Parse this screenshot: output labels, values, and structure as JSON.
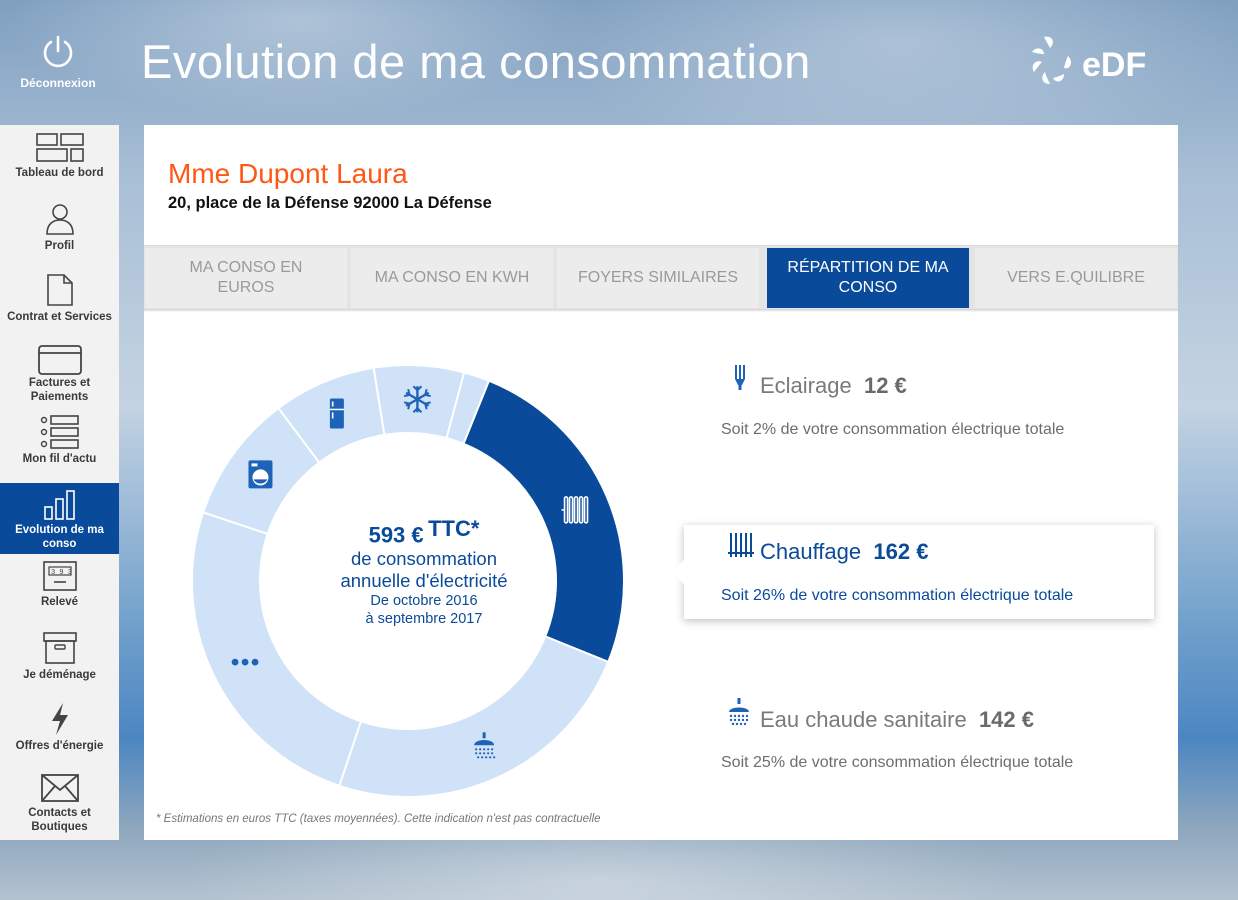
{
  "header": {
    "logout_label": "Déconnexion",
    "page_title": "Evolution de ma consommation",
    "brand": "eDF"
  },
  "sidebar": {
    "items": [
      {
        "label": "Tableau de bord",
        "icon": "dashboard-icon"
      },
      {
        "label": "Profil",
        "icon": "profile-icon"
      },
      {
        "label": "Contrat et Services",
        "icon": "document-icon"
      },
      {
        "label": "Factures et Paiements",
        "icon": "card-icon"
      },
      {
        "label": "Mon fil d'actu",
        "icon": "list-icon"
      },
      {
        "label": "Evolution de ma conso",
        "icon": "bar-chart-icon",
        "active": true
      },
      {
        "label": "Relevé",
        "icon": "meter-icon"
      },
      {
        "label": "Je déménage",
        "icon": "box-icon"
      },
      {
        "label": "Offres d'énergie",
        "icon": "lightning-icon"
      },
      {
        "label": "Contacts et Boutiques",
        "icon": "envelope-icon"
      }
    ]
  },
  "customer": {
    "name": "Mme Dupont Laura",
    "address": "20, place de la Défense 92000 La Défense"
  },
  "tabs": [
    {
      "label": "MA CONSO EN EUROS"
    },
    {
      "label": "MA CONSO EN KWH"
    },
    {
      "label": "FOYERS SIMILAIRES"
    },
    {
      "label": "RÉPARTITION DE MA CONSO",
      "active": true
    },
    {
      "label": "VERS E.QUILIBRE"
    }
  ],
  "summary": {
    "amount": "593 €",
    "tax": "TTC*",
    "line1": "de consommation",
    "line2": "annuelle d'électricité",
    "period1": "De octobre 2016",
    "period2": "à septembre 2017"
  },
  "chart_data": {
    "type": "pie",
    "segments": [
      {
        "name": "Chauffage",
        "icon": "radiator-icon",
        "share": 0.26,
        "selected": true
      },
      {
        "name": "Eau chaude sanitaire",
        "icon": "shower-icon",
        "share": 0.25
      },
      {
        "name": "Autres",
        "icon": "more-icon",
        "share": 0.26
      },
      {
        "name": "Lave-linge",
        "icon": "washing-machine-icon",
        "share": 0.1
      },
      {
        "name": "Réfrigérateur",
        "icon": "fridge-icon",
        "share": 0.08
      },
      {
        "name": "Congélateur",
        "icon": "snowflake-icon",
        "share": 0.07
      },
      {
        "name": "Eclairage",
        "icon": "",
        "share": 0.02
      }
    ],
    "colors": {
      "selected": "#0a4a9a",
      "other": "#cfe2f7",
      "icon": "#1f63b8"
    }
  },
  "usages": [
    {
      "name": "Eclairage",
      "amount": "12 €",
      "detail": "Soit 2% de votre consommation électrique totale",
      "icon": "lamp-icon"
    },
    {
      "name": "Chauffage",
      "amount": "162 €",
      "detail": "Soit 26% de votre consommation électrique totale",
      "icon": "radiator-icon",
      "selected": true
    },
    {
      "name": "Eau chaude sanitaire",
      "amount": "142 €",
      "detail": "Soit 25% de votre consommation électrique totale",
      "icon": "shower-icon"
    }
  ],
  "footnote": "* Estimations en euros TTC (taxes moyennées). Cette indication n'est pas contractuelle"
}
